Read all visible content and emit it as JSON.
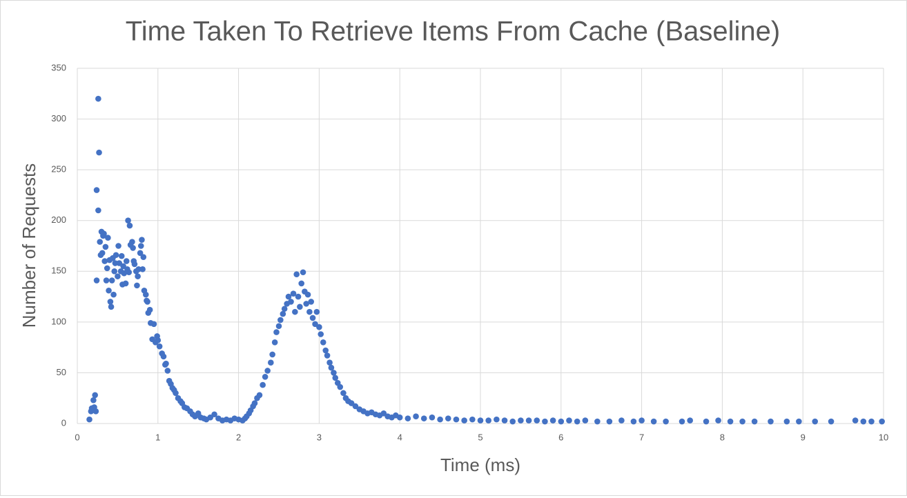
{
  "chart_data": {
    "type": "scatter",
    "title": "Time Taken To Retrieve Items From Cache (Baseline)",
    "x_label": "Time (ms)",
    "y_label": "Number of Requests",
    "color": "#4472c4",
    "grid": true,
    "xlim": [
      0,
      10
    ],
    "xticks": [
      0,
      1,
      2,
      3,
      4,
      5,
      6,
      7,
      8,
      9,
      10
    ],
    "ylim": [
      0,
      350
    ],
    "yticks": [
      0,
      50,
      100,
      150,
      200,
      250,
      300,
      350
    ],
    "x": [
      0.15,
      0.17,
      0.18,
      0.2,
      0.21,
      0.22,
      0.23,
      0.24,
      0.24,
      0.26,
      0.26,
      0.27,
      0.28,
      0.29,
      0.3,
      0.31,
      0.32,
      0.33,
      0.34,
      0.35,
      0.36,
      0.37,
      0.38,
      0.39,
      0.4,
      0.41,
      0.42,
      0.43,
      0.44,
      0.45,
      0.46,
      0.47,
      0.48,
      0.5,
      0.51,
      0.52,
      0.54,
      0.55,
      0.56,
      0.57,
      0.58,
      0.6,
      0.61,
      0.62,
      0.63,
      0.64,
      0.65,
      0.66,
      0.68,
      0.69,
      0.7,
      0.71,
      0.73,
      0.74,
      0.75,
      0.76,
      0.78,
      0.79,
      0.8,
      0.81,
      0.82,
      0.83,
      0.85,
      0.86,
      0.87,
      0.88,
      0.9,
      0.91,
      0.93,
      0.95,
      0.97,
      0.99,
      1.0,
      1.02,
      1.05,
      1.07,
      1.09,
      1.1,
      1.12,
      1.14,
      1.16,
      1.18,
      1.2,
      1.22,
      1.25,
      1.28,
      1.3,
      1.33,
      1.36,
      1.4,
      1.43,
      1.46,
      1.5,
      1.53,
      1.57,
      1.6,
      1.65,
      1.7,
      1.75,
      1.8,
      1.85,
      1.9,
      1.95,
      2.0,
      2.05,
      2.08,
      2.1,
      2.13,
      2.15,
      2.18,
      2.2,
      2.23,
      2.26,
      2.3,
      2.33,
      2.36,
      2.4,
      2.42,
      2.45,
      2.47,
      2.5,
      2.52,
      2.55,
      2.57,
      2.6,
      2.62,
      2.65,
      2.68,
      2.7,
      2.72,
      2.74,
      2.76,
      2.78,
      2.8,
      2.82,
      2.84,
      2.86,
      2.88,
      2.9,
      2.92,
      2.95,
      2.97,
      3.0,
      3.02,
      3.05,
      3.08,
      3.1,
      3.13,
      3.15,
      3.18,
      3.2,
      3.23,
      3.26,
      3.3,
      3.33,
      3.36,
      3.4,
      3.45,
      3.5,
      3.55,
      3.6,
      3.65,
      3.7,
      3.75,
      3.8,
      3.85,
      3.9,
      3.95,
      4.0,
      4.1,
      4.2,
      4.3,
      4.4,
      4.5,
      4.6,
      4.7,
      4.8,
      4.9,
      5.0,
      5.1,
      5.2,
      5.3,
      5.4,
      5.5,
      5.6,
      5.7,
      5.8,
      5.9,
      6.0,
      6.1,
      6.2,
      6.3,
      6.45,
      6.6,
      6.75,
      6.9,
      7.0,
      7.15,
      7.3,
      7.5,
      7.6,
      7.8,
      7.95,
      8.1,
      8.25,
      8.4,
      8.6,
      8.8,
      8.95,
      9.15,
      9.35,
      9.65,
      9.75,
      9.85,
      9.98
    ],
    "values": [
      4,
      12,
      15,
      23,
      16,
      28,
      12,
      141,
      230,
      210,
      320,
      267,
      179,
      166,
      189,
      168,
      185,
      187,
      160,
      174,
      141,
      153,
      183,
      131,
      161,
      120,
      115,
      141,
      163,
      127,
      150,
      158,
      166,
      145,
      175,
      158,
      150,
      165,
      137,
      155,
      148,
      138,
      160,
      152,
      200,
      149,
      195,
      176,
      179,
      173,
      160,
      157,
      150,
      136,
      145,
      152,
      168,
      175,
      181,
      152,
      164,
      131,
      127,
      121,
      120,
      109,
      112,
      99,
      83,
      98,
      80,
      86,
      82,
      76,
      69,
      66,
      58,
      59,
      52,
      42,
      39,
      35,
      33,
      30,
      25,
      22,
      20,
      16,
      15,
      12,
      9,
      7,
      10,
      6,
      5,
      4,
      6,
      9,
      5,
      3,
      4,
      3,
      5,
      4,
      3,
      5,
      7,
      10,
      13,
      17,
      20,
      25,
      28,
      38,
      46,
      52,
      60,
      68,
      80,
      90,
      96,
      102,
      108,
      113,
      118,
      125,
      120,
      128,
      110,
      147,
      125,
      115,
      138,
      149,
      130,
      118,
      127,
      110,
      120,
      104,
      98,
      110,
      95,
      88,
      80,
      72,
      67,
      60,
      55,
      50,
      45,
      40,
      36,
      30,
      25,
      22,
      20,
      17,
      14,
      12,
      10,
      11,
      9,
      8,
      10,
      7,
      6,
      8,
      6,
      5,
      7,
      5,
      6,
      4,
      5,
      4,
      3,
      4,
      3,
      3,
      4,
      3,
      2,
      3,
      3,
      3,
      2,
      3,
      2,
      3,
      2,
      3,
      2,
      2,
      3,
      2,
      3,
      2,
      2,
      2,
      3,
      2,
      3,
      2,
      2,
      2,
      2,
      2,
      2,
      2,
      2,
      3,
      2,
      2,
      2
    ]
  }
}
